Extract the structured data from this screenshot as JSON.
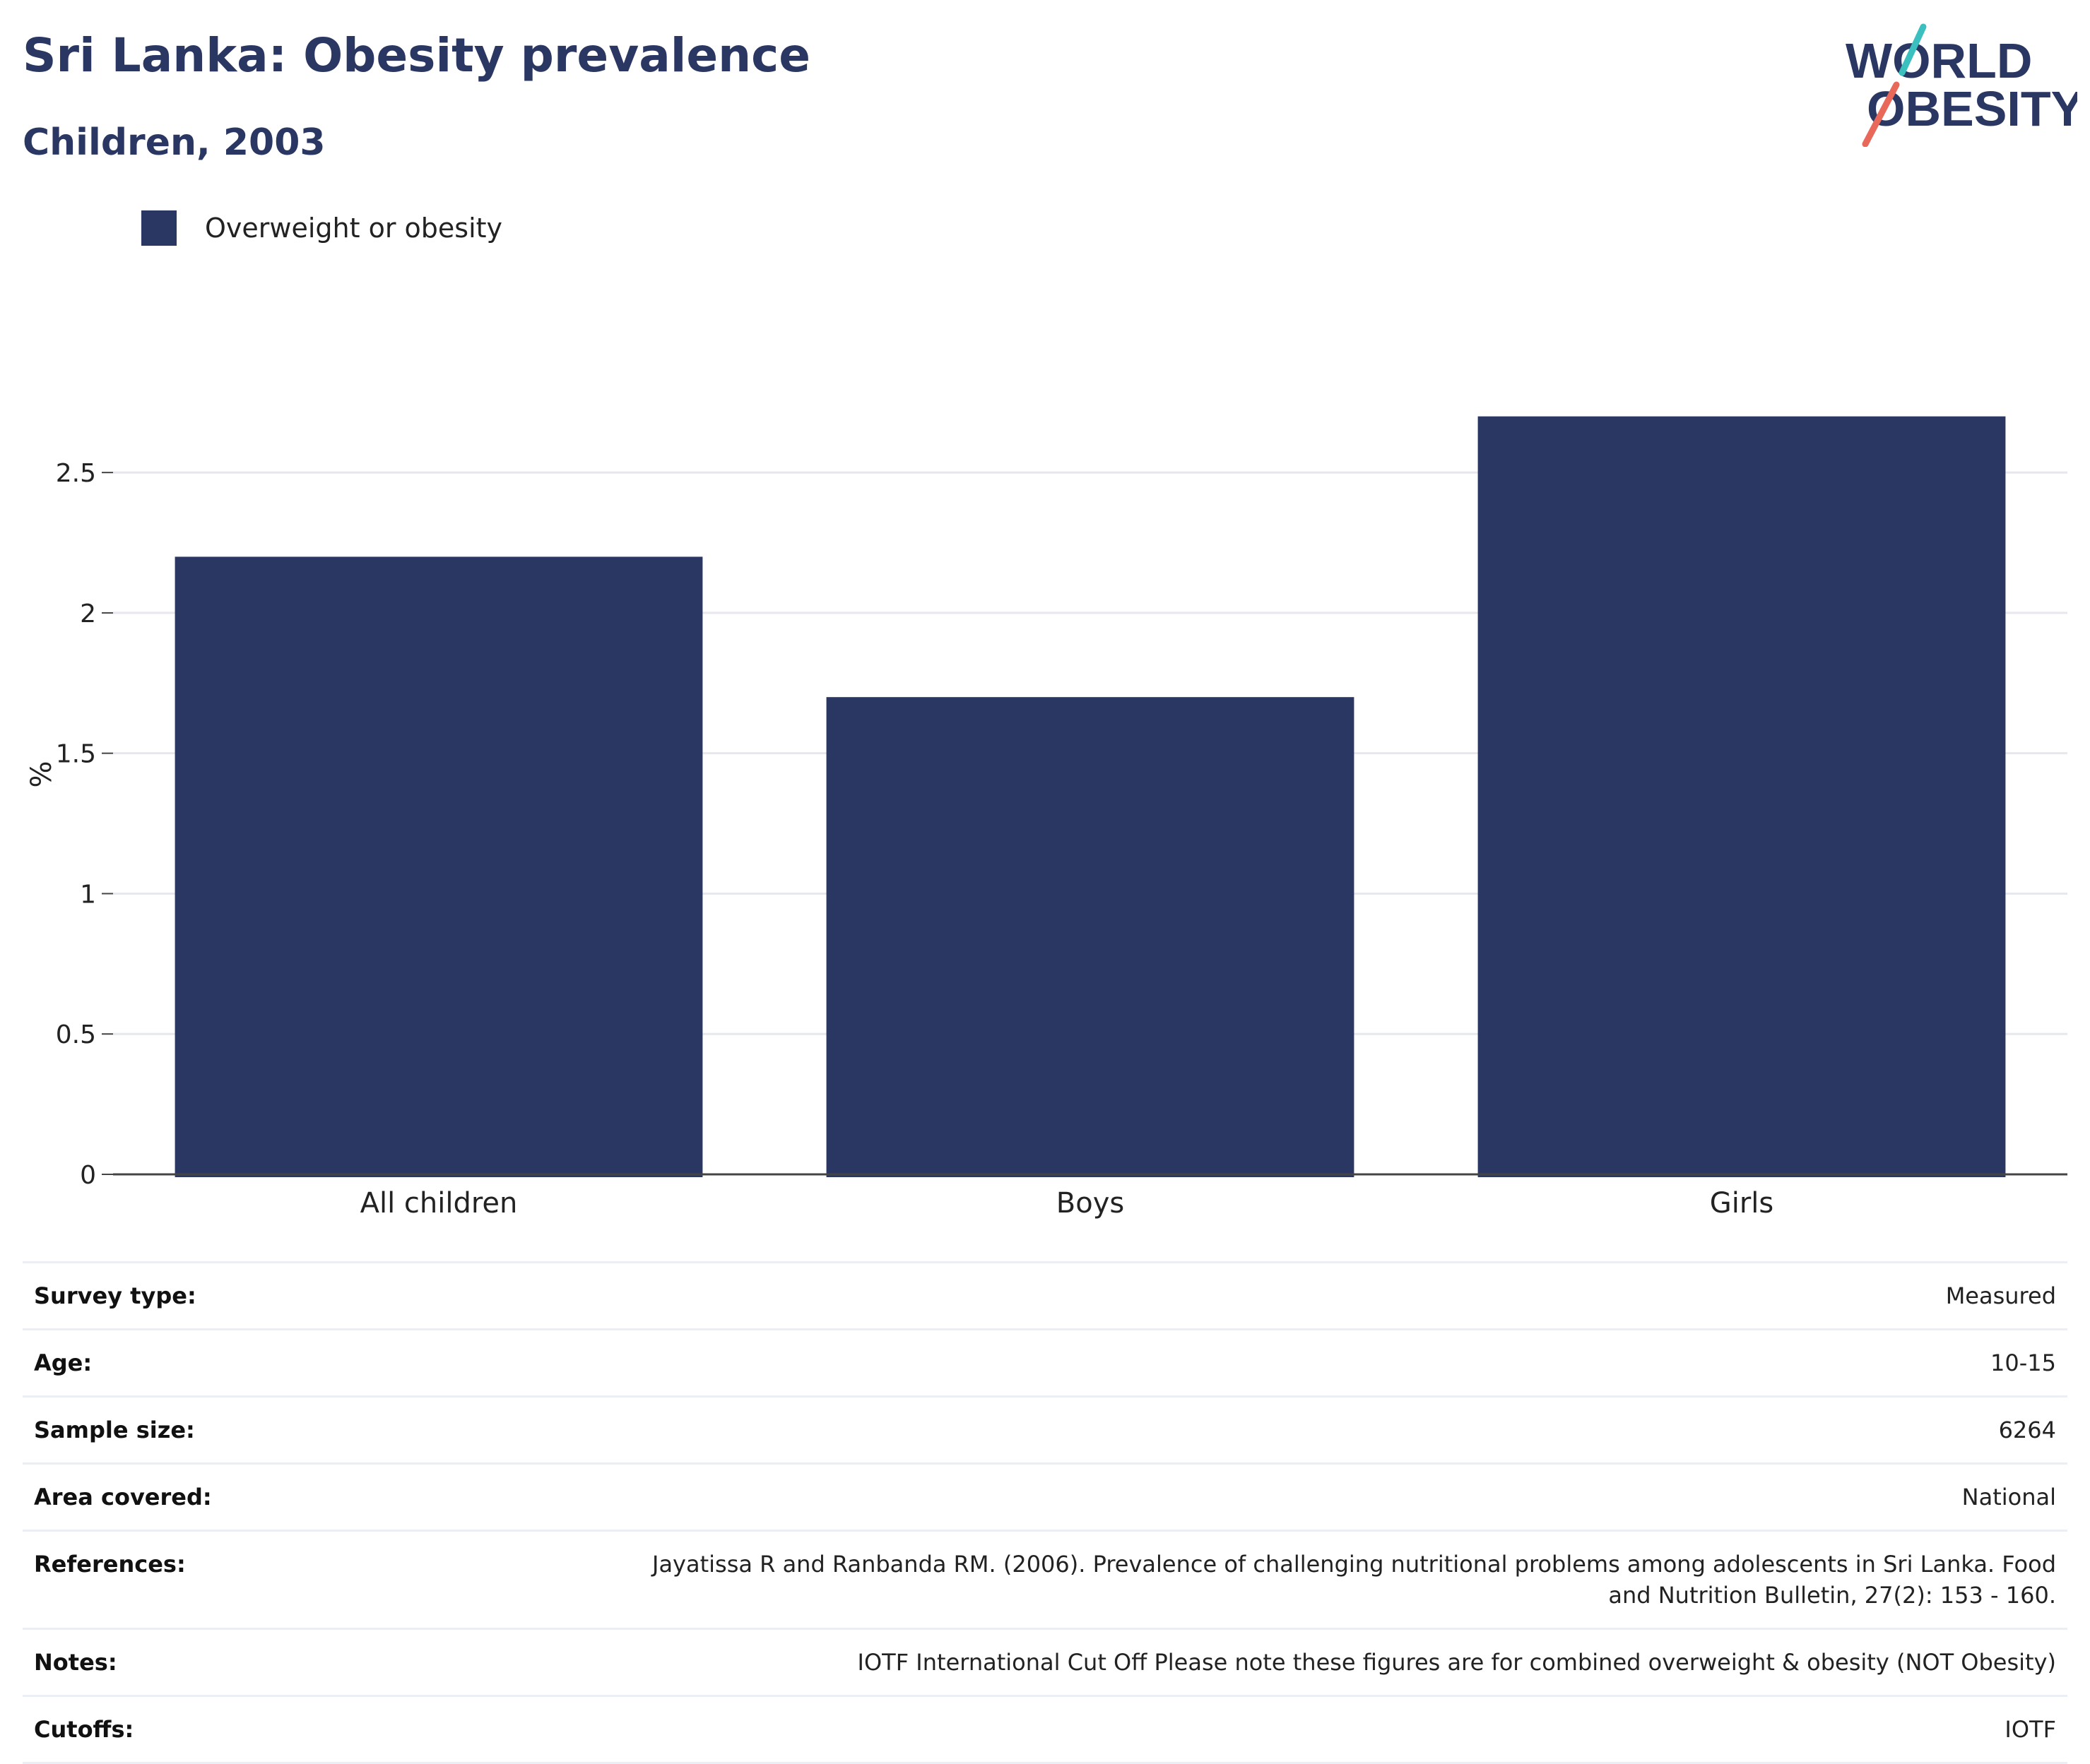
{
  "header": {
    "title": "Sri Lanka: Obesity prevalence",
    "subtitle": "Children, 2003"
  },
  "logo": {
    "line1": "WORLD",
    "line2": "OBESITY",
    "accent_colors": [
      "#3bbfbf",
      "#e8685a"
    ]
  },
  "legend": {
    "label": "Overweight or obesity",
    "color": "#2b3763"
  },
  "chart_data": {
    "type": "bar",
    "categories": [
      "All children",
      "Boys",
      "Girls"
    ],
    "series": [
      {
        "name": "Overweight or obesity",
        "values": [
          2.2,
          1.7,
          2.7
        ],
        "color": "#2b3763"
      }
    ],
    "ylabel": "%",
    "ylim": [
      0,
      2.85
    ],
    "yticks": [
      0,
      0.5,
      1,
      1.5,
      2,
      2.5
    ],
    "ytick_labels": [
      "0",
      "0.5",
      "1",
      "1.5",
      "2",
      "2.5"
    ],
    "grid": true
  },
  "info": [
    {
      "key": "Survey type:",
      "value": "Measured"
    },
    {
      "key": "Age:",
      "value": "10-15"
    },
    {
      "key": "Sample size:",
      "value": "6264"
    },
    {
      "key": "Area covered:",
      "value": "National"
    },
    {
      "key": "References:",
      "value": "Jayatissa R and Ranbanda RM. (2006). Prevalence of challenging nutritional problems among adolescents in Sri Lanka. Food and Nutrition Bulletin, 27(2): 153 - 160."
    },
    {
      "key": "Notes:",
      "value": "IOTF International Cut Off Please note these figures are for combined overweight & obesity (NOT Obesity)"
    },
    {
      "key": "Cutoffs:",
      "value": "IOTF"
    }
  ]
}
